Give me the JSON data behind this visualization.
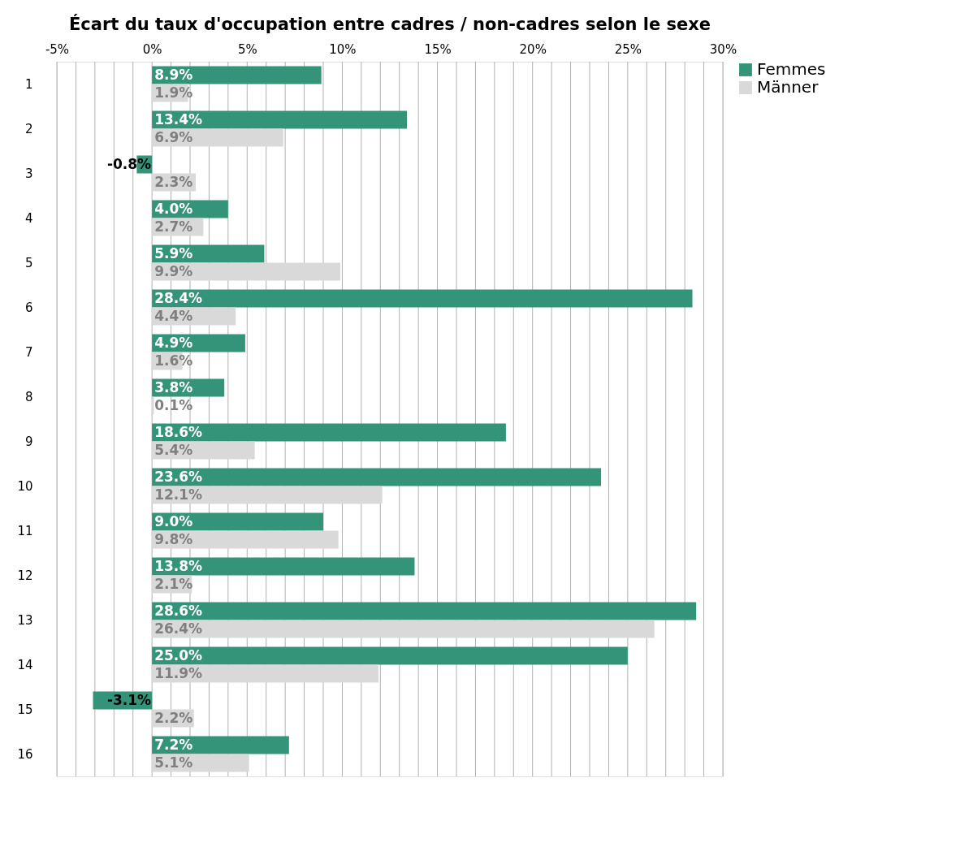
{
  "chart_data": {
    "type": "bar",
    "orientation": "horizontal",
    "title": "Écart du taux d'occupation entre cadres / non-cadres selon le sexe",
    "categories": [
      "1",
      "2",
      "3",
      "4",
      "5",
      "6",
      "7",
      "8",
      "9",
      "10",
      "11",
      "12",
      "13",
      "14",
      "15",
      "16"
    ],
    "series": [
      {
        "name": "Femmes",
        "color": "#339479",
        "values": [
          8.9,
          13.4,
          -0.8,
          4.0,
          5.9,
          28.4,
          4.9,
          3.8,
          18.6,
          23.6,
          9.0,
          13.8,
          28.6,
          25.0,
          -3.1,
          7.2
        ],
        "value_labels": [
          "8.9%",
          "13.4%",
          "-0.8%",
          "4.0%",
          "5.9%",
          "28.4%",
          "4.9%",
          "3.8%",
          "18.6%",
          "23.6%",
          "9.0%",
          "13.8%",
          "28.6%",
          "25.0%",
          "-3.1%",
          "7.2%"
        ]
      },
      {
        "name": "Männer",
        "color": "#d9d9d9",
        "values": [
          1.9,
          6.9,
          2.3,
          2.7,
          9.9,
          4.4,
          1.6,
          0.1,
          5.4,
          12.1,
          9.8,
          2.1,
          26.4,
          11.9,
          2.2,
          5.1
        ],
        "value_labels": [
          "1.9%",
          "6.9%",
          "2.3%",
          "2.7%",
          "9.9%",
          "4.4%",
          "1.6%",
          "0.1%",
          "5.4%",
          "12.1%",
          "9.8%",
          "2.1%",
          "26.4%",
          "11.9%",
          "2.2%",
          "5.1%"
        ]
      }
    ],
    "xlim": [
      -5,
      30
    ],
    "xticks": [
      {
        "value": -5,
        "label": "-5%"
      },
      {
        "value": -4,
        "label": null
      },
      {
        "value": -3,
        "label": null
      },
      {
        "value": -2,
        "label": null
      },
      {
        "value": -1,
        "label": null
      },
      {
        "value": 0,
        "label": "0%"
      },
      {
        "value": 1,
        "label": null
      },
      {
        "value": 2,
        "label": null
      },
      {
        "value": 3,
        "label": null
      },
      {
        "value": 4,
        "label": null
      },
      {
        "value": 5,
        "label": "5%"
      },
      {
        "value": 6,
        "label": null
      },
      {
        "value": 7,
        "label": null
      },
      {
        "value": 8,
        "label": null
      },
      {
        "value": 9,
        "label": null
      },
      {
        "value": 10,
        "label": "10%"
      },
      {
        "value": 11,
        "label": null
      },
      {
        "value": 12,
        "label": null
      },
      {
        "value": 13,
        "label": null
      },
      {
        "value": 14,
        "label": null
      },
      {
        "value": 15,
        "label": "15%"
      },
      {
        "value": 16,
        "label": null
      },
      {
        "value": 17,
        "label": null
      },
      {
        "value": 18,
        "label": null
      },
      {
        "value": 19,
        "label": null
      },
      {
        "value": 20,
        "label": "20%"
      },
      {
        "value": 21,
        "label": null
      },
      {
        "value": 22,
        "label": null
      },
      {
        "value": 23,
        "label": null
      },
      {
        "value": 24,
        "label": null
      },
      {
        "value": 25,
        "label": "25%"
      },
      {
        "value": 26,
        "label": null
      },
      {
        "value": 27,
        "label": null
      },
      {
        "value": 28,
        "label": null
      },
      {
        "value": 29,
        "label": null
      },
      {
        "value": 30,
        "label": "30%"
      }
    ],
    "grid": "x",
    "legend": "right"
  }
}
